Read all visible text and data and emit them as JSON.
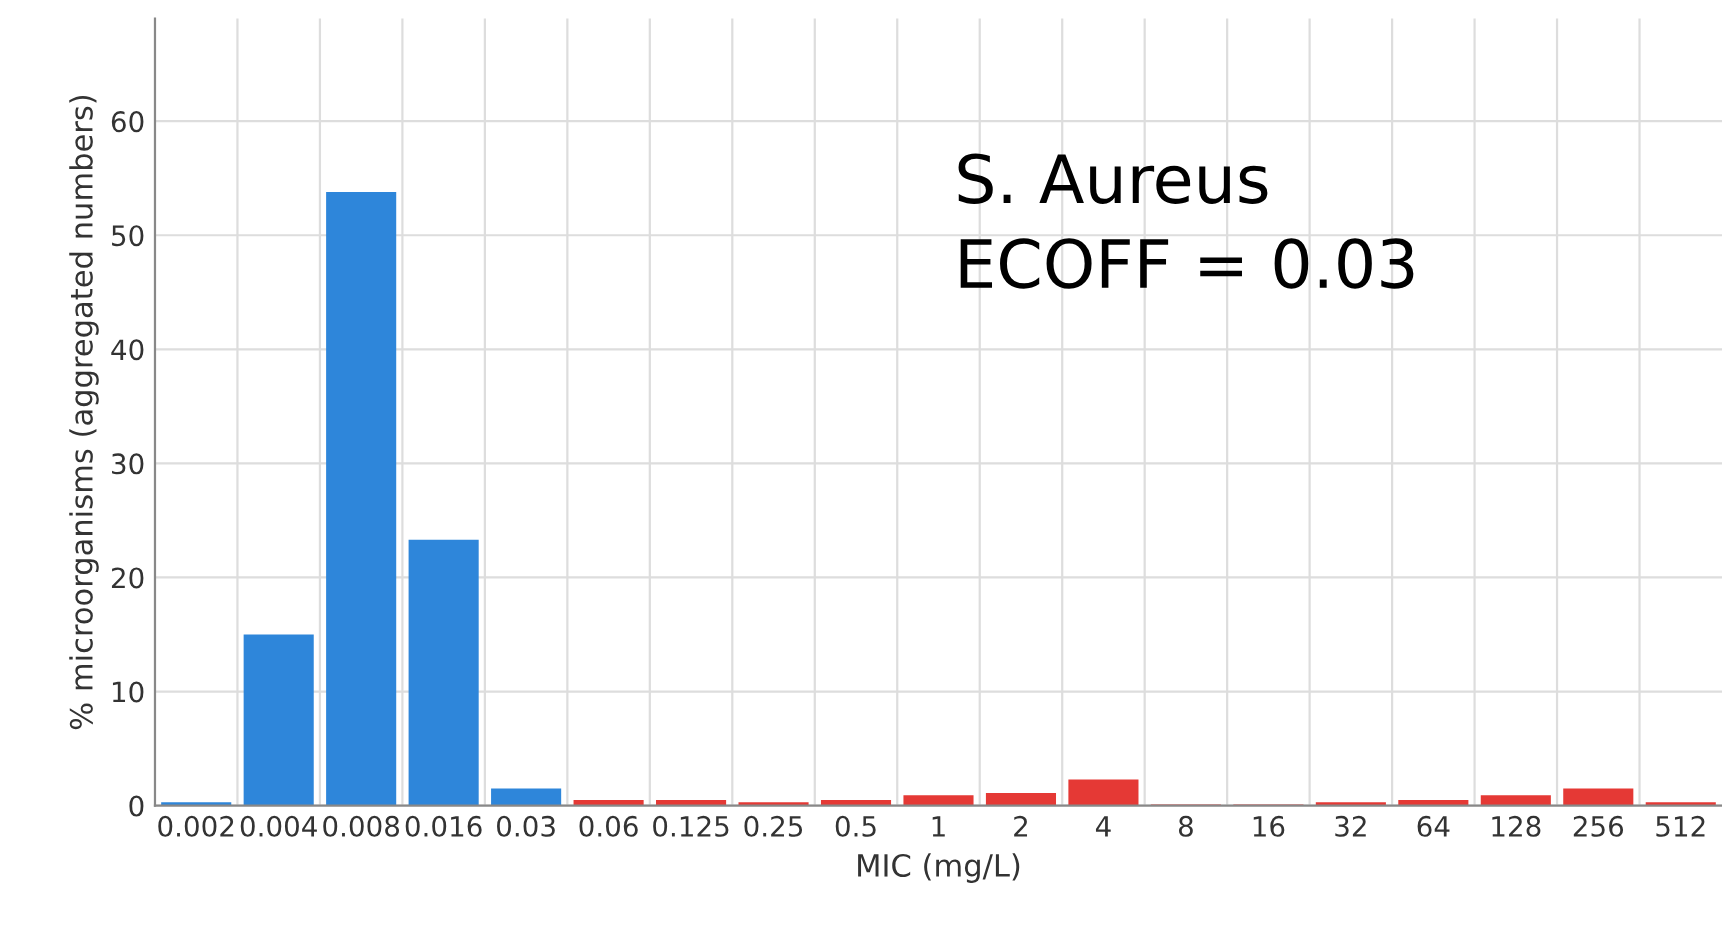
{
  "chart_data": {
    "type": "bar",
    "xlabel": "MIC (mg/L)",
    "ylabel": "% microorganisms (aggregated numbers)",
    "categories": [
      "0.002",
      "0.004",
      "0.008",
      "0.016",
      "0.03",
      "0.06",
      "0.125",
      "0.25",
      "0.5",
      "1",
      "2",
      "4",
      "8",
      "16",
      "32",
      "64",
      "128",
      "256",
      "512"
    ],
    "values": [
      0.3,
      15,
      53.8,
      23.3,
      1.5,
      0.5,
      0.5,
      0.3,
      0.5,
      0.9,
      1.1,
      2.3,
      0.1,
      0.1,
      0.3,
      0.5,
      0.9,
      1.5,
      0.3
    ],
    "colors": [
      "#2e86da",
      "#2e86da",
      "#2e86da",
      "#2e86da",
      "#2e86da",
      "#e53935",
      "#e53935",
      "#e53935",
      "#e53935",
      "#e53935",
      "#e53935",
      "#e53935",
      "#e53935",
      "#e53935",
      "#e53935",
      "#e53935",
      "#e53935",
      "#e53935",
      "#e53935"
    ],
    "ylim": [
      0,
      69
    ],
    "yticks": [
      0,
      10,
      20,
      30,
      40,
      50,
      60
    ],
    "grid": true,
    "legend": false,
    "annotations": [
      "S. Aureus\nECOFF = 0.03"
    ]
  }
}
